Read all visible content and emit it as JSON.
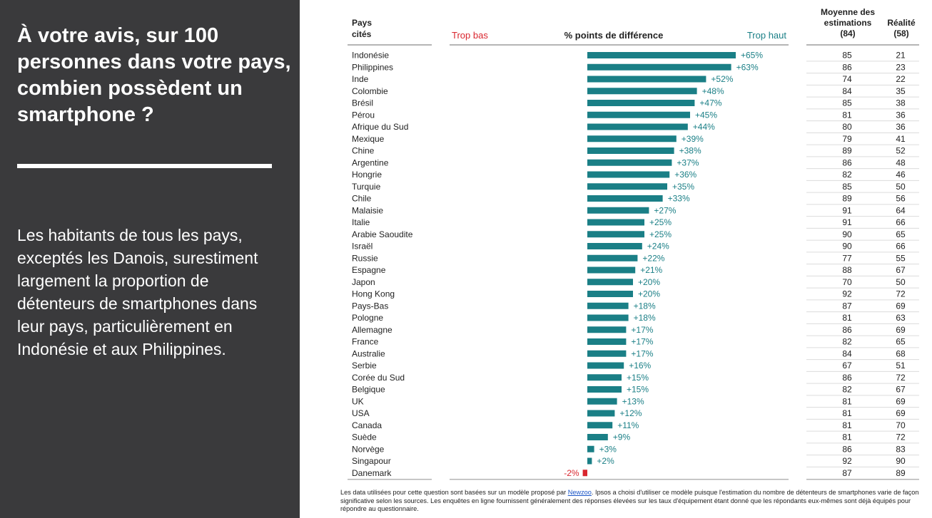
{
  "left_panel": {
    "question": "À votre avis, sur 100 personnes dans votre pays, combien possèdent un smartphone ?",
    "summary": "Les habitants de tous les pays, exceptés les Danois, surestiment largement la proportion de détenteurs de smartphones dans leur pays, particulièrement en Indonésie et aux Philippines."
  },
  "headers": {
    "country_line1": "Pays",
    "country_line2": "cités",
    "too_low": "Trop bas",
    "diff": "% points de différence",
    "too_high": "Trop haut",
    "mean_line1": "Moyenne des",
    "mean_line2": "estimations",
    "mean_line3": "(84)",
    "real_line1": "Réalité",
    "real_line2": "(58)"
  },
  "colors": {
    "positive": "#1a7f86",
    "negative": "#d9262e"
  },
  "chart_data": {
    "type": "bar",
    "orientation": "horizontal",
    "categories": [
      "Indonésie",
      "Philippines",
      "Inde",
      "Colombie",
      "Brésil",
      "Pérou",
      "Afrique du Sud",
      "Mexique",
      "Chine",
      "Argentine",
      "Hongrie",
      "Turquie",
      "Chile",
      "Malaisie",
      "Italie",
      "Arabie Saoudite",
      "Israël",
      "Russie",
      "Espagne",
      "Japon",
      "Hong Kong",
      "Pays-Bas",
      "Pologne",
      "Allemagne",
      "France",
      "Australie",
      "Serbie",
      "Corée du Sud",
      "Belgique",
      "UK",
      "USA",
      "Canada",
      "Suède",
      "Norvège",
      "Singapour",
      "Danemark"
    ],
    "values": [
      65,
      63,
      52,
      48,
      47,
      45,
      44,
      39,
      38,
      37,
      36,
      35,
      33,
      27,
      25,
      25,
      24,
      22,
      21,
      20,
      20,
      18,
      18,
      17,
      17,
      17,
      16,
      15,
      15,
      13,
      12,
      11,
      9,
      3,
      2,
      -2
    ],
    "value_labels": [
      "+65%",
      "+63%",
      "+52%",
      "+48%",
      "+47%",
      "+45%",
      "+44%",
      "+39%",
      "+38%",
      "+37%",
      "+36%",
      "+35%",
      "+33%",
      "+27%",
      "+25%",
      "+25%",
      "+24%",
      "+22%",
      "+21%",
      "+20%",
      "+20%",
      "+18%",
      "+18%",
      "+17%",
      "+17%",
      "+17%",
      "+16%",
      "+15%",
      "+15%",
      "+13%",
      "+12%",
      "+11%",
      "+9%",
      "+3%",
      "+2%",
      "-2%"
    ],
    "mean_estimates": [
      85,
      86,
      74,
      84,
      85,
      81,
      80,
      79,
      89,
      86,
      82,
      85,
      89,
      91,
      91,
      90,
      90,
      77,
      88,
      70,
      92,
      87,
      81,
      86,
      82,
      84,
      67,
      86,
      82,
      81,
      81,
      81,
      81,
      86,
      92,
      87
    ],
    "reality": [
      21,
      23,
      22,
      35,
      38,
      36,
      36,
      41,
      52,
      48,
      46,
      50,
      56,
      64,
      66,
      65,
      66,
      55,
      67,
      50,
      72,
      69,
      63,
      69,
      65,
      68,
      51,
      72,
      67,
      69,
      69,
      70,
      72,
      83,
      90,
      89
    ],
    "xlim": [
      -60,
      70
    ],
    "grid": false
  },
  "footnote": {
    "text_before": "Les data utilisées pour cette question sont basées sur un modèle proposé par ",
    "link": "Newzoo",
    "text_after": ". Ipsos a choisi d'utiliser ce modèle puisque l'estimation du nombre de détenteurs de smartphones varie de façon significative selon les sources. Les enquêtes en ligne fournissent généralement des réponses élevées sur les taux d'équipement étant donné que les répondants eux-mêmes sont déjà équipés pour répondre au questionnaire."
  }
}
